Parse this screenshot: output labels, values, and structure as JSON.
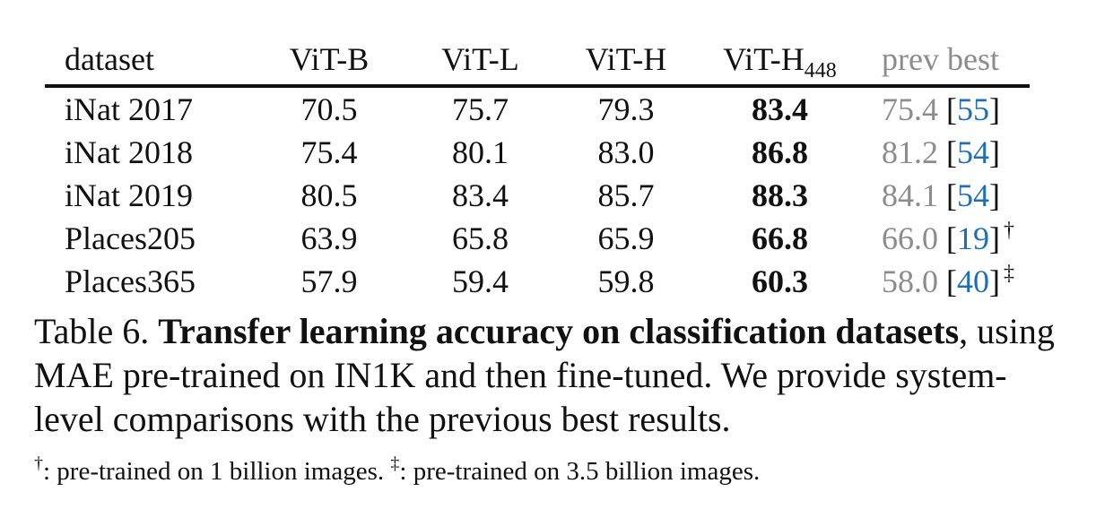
{
  "table": {
    "headers": {
      "dataset": "dataset",
      "vitb": "ViT-B",
      "vitl": "ViT-L",
      "vith": "ViT-H",
      "vith448_base": "ViT-H",
      "vith448_sub": "448",
      "prev": "prev best"
    },
    "rows": [
      {
        "dataset": "iNat 2017",
        "vitb": "70.5",
        "vitl": "75.7",
        "vith": "79.3",
        "vith448": "83.4",
        "prev_val": "75.4",
        "prev_open": "[",
        "prev_ref": "55",
        "prev_close": "]",
        "mark": ""
      },
      {
        "dataset": "iNat 2018",
        "vitb": "75.4",
        "vitl": "80.1",
        "vith": "83.0",
        "vith448": "86.8",
        "prev_val": "81.2",
        "prev_open": "[",
        "prev_ref": "54",
        "prev_close": "]",
        "mark": ""
      },
      {
        "dataset": "iNat 2019",
        "vitb": "80.5",
        "vitl": "83.4",
        "vith": "85.7",
        "vith448": "88.3",
        "prev_val": "84.1",
        "prev_open": "[",
        "prev_ref": "54",
        "prev_close": "]",
        "mark": ""
      },
      {
        "dataset": "Places205",
        "vitb": "63.9",
        "vitl": "65.8",
        "vith": "65.9",
        "vith448": "66.8",
        "prev_val": "66.0",
        "prev_open": "[",
        "prev_ref": "19",
        "prev_close": "]",
        "mark": "†"
      },
      {
        "dataset": "Places365",
        "vitb": "57.9",
        "vitl": "59.4",
        "vith": "59.8",
        "vith448": "60.3",
        "prev_val": "58.0",
        "prev_open": "[",
        "prev_ref": "40",
        "prev_close": "]",
        "mark": "‡"
      }
    ]
  },
  "caption": {
    "label": "Table 6.",
    "title": "Transfer learning accuracy on classification datasets",
    "rest": ", using MAE pre-trained on IN1K and then fine-tuned. We provide system-level comparisons with the previous best results."
  },
  "footnote": {
    "mark1": "†",
    "text1": ": pre-trained on 1 billion images.",
    "mark2": "‡",
    "text2": ": pre-trained on 3.5 billion images."
  },
  "colors": {
    "text": "#111111",
    "prev_best_grey": "#8c8c8c",
    "citation_blue": "#1f6fb2"
  }
}
